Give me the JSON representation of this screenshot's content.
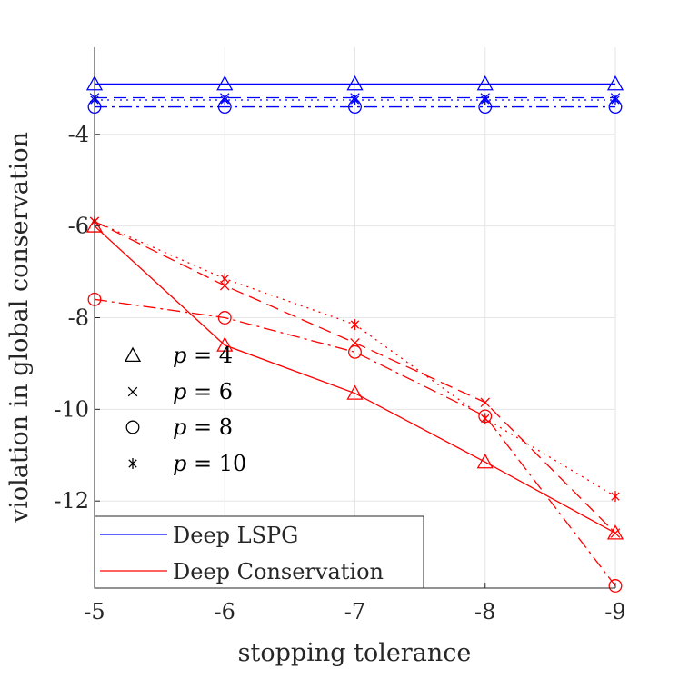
{
  "chart_data": {
    "type": "line",
    "title": "",
    "xlabel": "stopping tolerance",
    "ylabel": "violation in global conservation",
    "x": [
      -5,
      -6,
      -7,
      -8,
      -9
    ],
    "x_tick_labels": [
      "-5",
      "-6",
      "-7",
      "-8",
      "-9"
    ],
    "y_ticks": [
      -4,
      -6,
      -8,
      -10,
      -12
    ],
    "y_tick_labels": [
      "-4",
      "-6",
      "-8",
      "-10",
      "-12"
    ],
    "xlim": [
      -5,
      -9
    ],
    "ylim": [
      -13.9,
      -2.1
    ],
    "grid": true,
    "colors": {
      "lspg": "#0000ff",
      "conservation": "#ff0000",
      "axis": "#262626",
      "grid": "#e6e6e6"
    },
    "marker_legend": [
      {
        "marker": "triangle",
        "prefix": "p",
        "eq": " = ",
        "value": "4"
      },
      {
        "marker": "x",
        "prefix": "p",
        "eq": " = ",
        "value": "6"
      },
      {
        "marker": "circle",
        "prefix": "p",
        "eq": " = ",
        "value": "8"
      },
      {
        "marker": "asterisk",
        "prefix": "p",
        "eq": " = ",
        "value": "10"
      }
    ],
    "method_legend": [
      {
        "label": "Deep LSPG",
        "color": "#0000ff"
      },
      {
        "label": "Deep Conservation",
        "color": "#ff0000"
      }
    ],
    "series": [
      {
        "name": "Deep LSPG p=4",
        "method": "lspg",
        "p": 4,
        "marker": "triangle",
        "dash": "solid",
        "values": [
          -2.9,
          -2.9,
          -2.9,
          -2.9,
          -2.9
        ]
      },
      {
        "name": "Deep LSPG p=6",
        "method": "lspg",
        "p": 6,
        "marker": "x",
        "dash": "dashed",
        "values": [
          -3.2,
          -3.2,
          -3.2,
          -3.2,
          -3.2
        ]
      },
      {
        "name": "Deep LSPG p=8",
        "method": "lspg",
        "p": 8,
        "marker": "circle",
        "dash": "dashdot",
        "values": [
          -3.4,
          -3.4,
          -3.4,
          -3.4,
          -3.4
        ]
      },
      {
        "name": "Deep LSPG p=10",
        "method": "lspg",
        "p": 10,
        "marker": "asterisk",
        "dash": "dotted",
        "values": [
          -3.25,
          -3.25,
          -3.25,
          -3.25,
          -3.25
        ]
      },
      {
        "name": "Deep Conservation p=4",
        "method": "conservation",
        "p": 4,
        "marker": "triangle",
        "dash": "solid",
        "values": [
          -6.0,
          -8.6,
          -9.65,
          -11.15,
          -12.7
        ]
      },
      {
        "name": "Deep Conservation p=6",
        "method": "conservation",
        "p": 6,
        "marker": "x",
        "dash": "dashed",
        "values": [
          -5.9,
          -7.3,
          -8.55,
          -9.85,
          -12.7
        ]
      },
      {
        "name": "Deep Conservation p=8",
        "method": "conservation",
        "p": 8,
        "marker": "circle",
        "dash": "dashdot",
        "values": [
          -7.6,
          -8.0,
          -8.75,
          -10.15,
          -13.85
        ]
      },
      {
        "name": "Deep Conservation p=10",
        "method": "conservation",
        "p": 10,
        "marker": "asterisk",
        "dash": "dotted",
        "values": [
          -5.9,
          -7.15,
          -8.15,
          -10.2,
          -11.9
        ]
      }
    ]
  }
}
